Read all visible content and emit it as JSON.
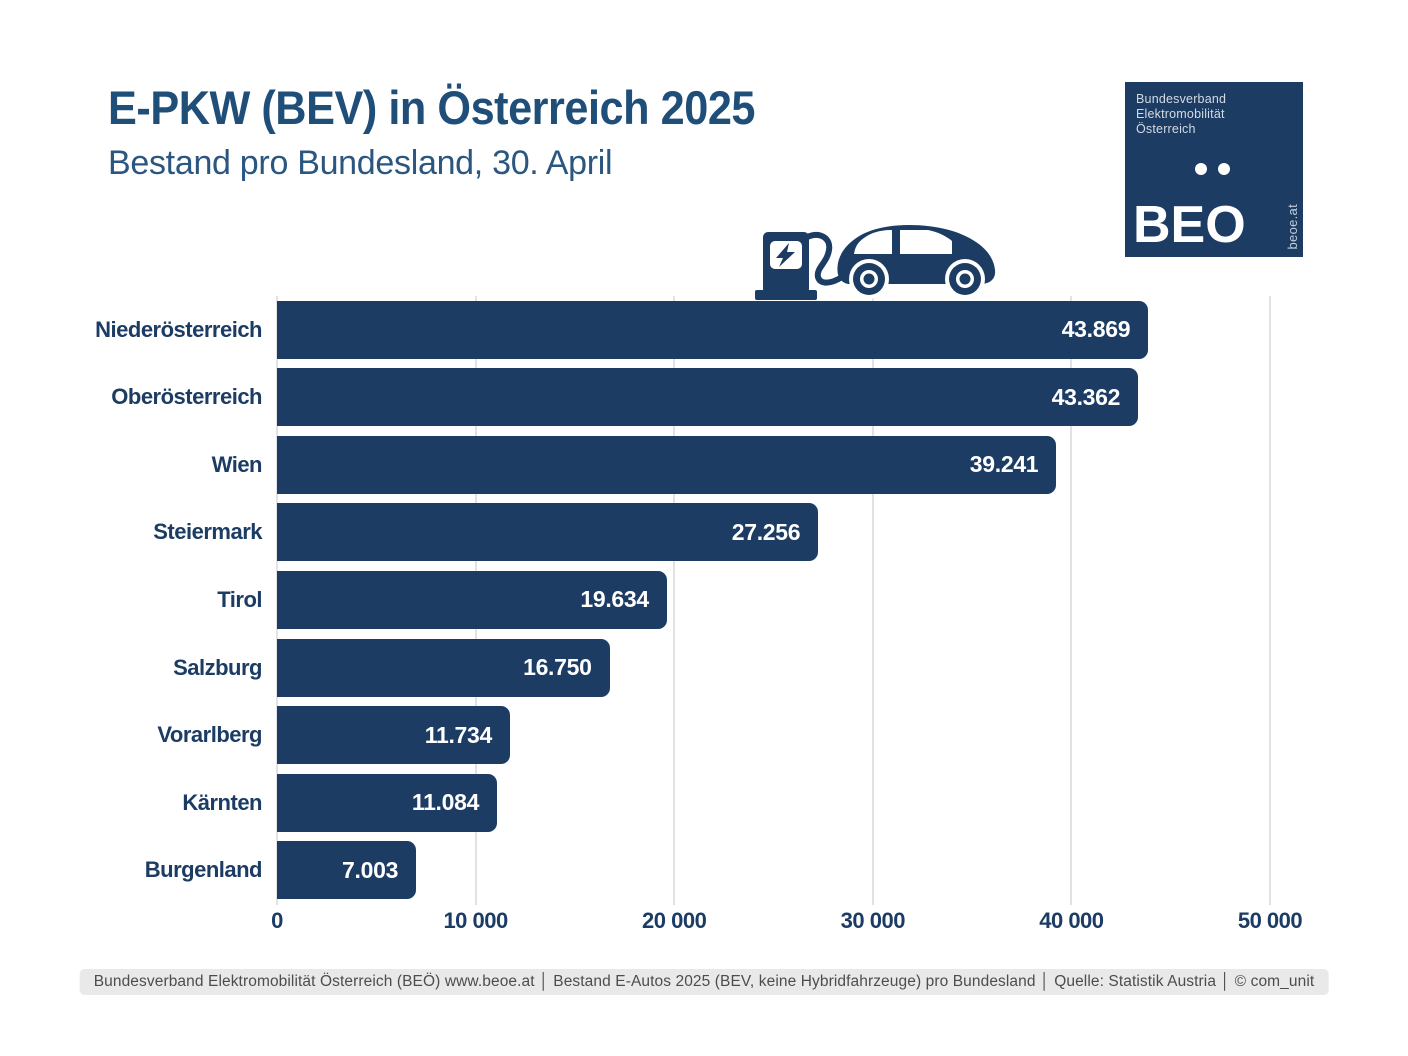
{
  "header": {
    "title": "E-PKW (BEV) in Österreich 2025",
    "subtitle": "Bestand pro Bundesland, 30. April"
  },
  "logo": {
    "org_lines": [
      "Bundesverband",
      "Elektromobilität",
      "Österreich"
    ],
    "acronym": "BEO",
    "website": "beoe.at",
    "bg_color": "#1C3C64"
  },
  "chart_data": {
    "type": "bar",
    "orientation": "horizontal",
    "title": "E-PKW (BEV) in Österreich 2025",
    "subtitle": "Bestand pro Bundesland, 30. April",
    "categories": [
      "Niederösterreich",
      "Oberösterreich",
      "Wien",
      "Steiermark",
      "Tirol",
      "Salzburg",
      "Vorarlberg",
      "Kärnten",
      "Burgenland"
    ],
    "values": [
      43869,
      43362,
      39241,
      27256,
      19634,
      16750,
      11734,
      11084,
      7003
    ],
    "value_labels": [
      "43.869",
      "43.362",
      "39.241",
      "27.256",
      "19.634",
      "16.750",
      "11.734",
      "11.084",
      "7.003"
    ],
    "x_ticks": [
      {
        "value": 0,
        "label": "0"
      },
      {
        "value": 10000,
        "label": "10 000"
      },
      {
        "value": 20000,
        "label": "20 000"
      },
      {
        "value": 30000,
        "label": "30 000"
      },
      {
        "value": 40000,
        "label": "40 000"
      },
      {
        "value": 50000,
        "label": "50 000"
      }
    ],
    "xlim": [
      0,
      50000
    ],
    "grid": "vertical",
    "legend": "none",
    "bar_color": "#1C3C64",
    "category_label_color": "#1C3C64",
    "tick_label_color": "#1C3C64",
    "gridline_color": "#E2E2E2",
    "value_text_color": "#FFFFFF"
  },
  "icons": {
    "ev_charging_icon": "charging-station-with-electric-car",
    "icon_color": "#1C3C64"
  },
  "footer": {
    "text": "Bundesverband Elektromobilität Österreich (BEÖ) www.beoe.at │ Bestand E-Autos 2025 (BEV, keine Hybridfahrzeuge) pro Bundesland │ Quelle: Statistik Austria │ © com_unit"
  }
}
